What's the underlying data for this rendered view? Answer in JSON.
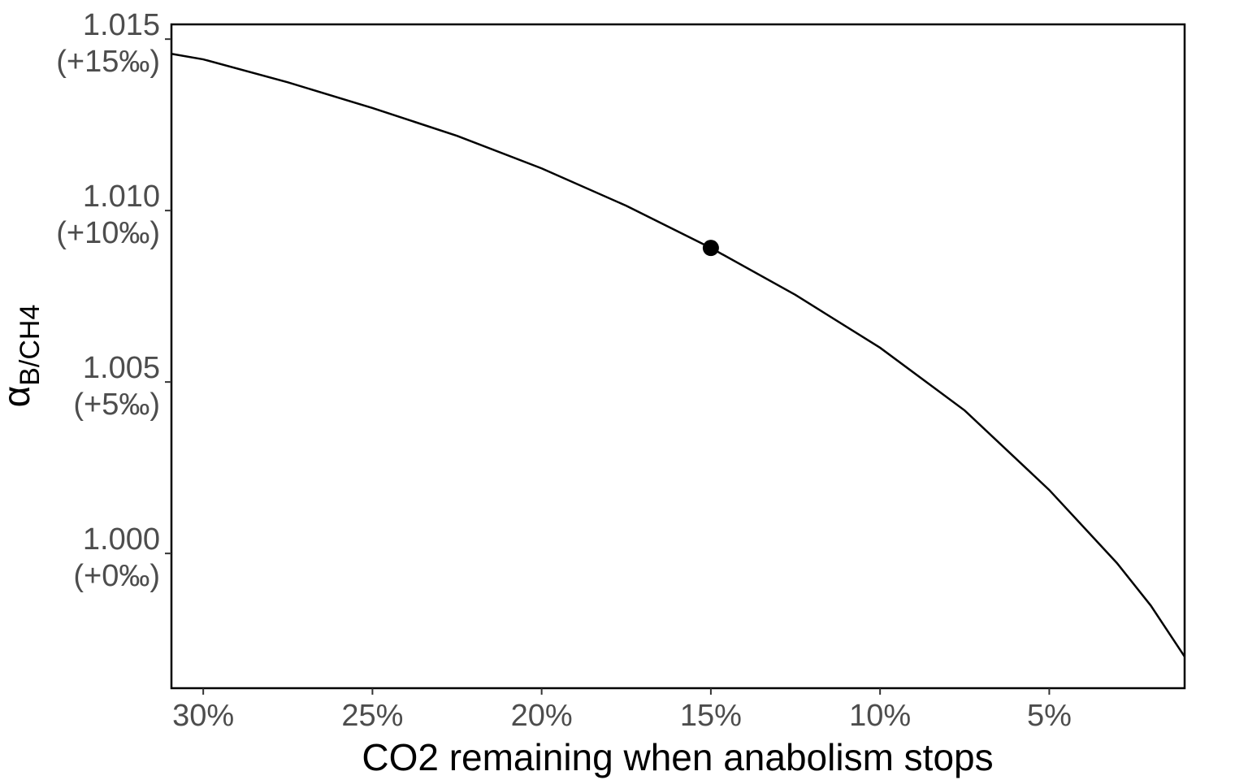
{
  "chart_data": {
    "type": "line",
    "xlabel": "CO2 remaining when anabolism stops",
    "ylabel": "α",
    "ylabel_subscript": "B/CH4",
    "x": [
      30.94,
      30,
      27.5,
      25,
      22.5,
      20,
      17.5,
      15,
      12.5,
      10,
      7.5,
      5,
      3,
      2,
      1
    ],
    "series": [
      {
        "color": "#000000",
        "values": [
          1.01457,
          1.01441,
          1.01374,
          1.01299,
          1.01218,
          1.01123,
          1.01014,
          1.00891,
          1.00754,
          1.006,
          1.00417,
          1.00185,
          0.99972,
          0.99848,
          0.99699
        ]
      }
    ],
    "points": [
      {
        "x": 15,
        "y": 1.00891,
        "color": "#000000"
      }
    ],
    "xlim": [
      30.94,
      1.0
    ],
    "ylim": [
      0.99607,
      1.01543
    ],
    "xticks": [
      {
        "value": 30,
        "label": "30%"
      },
      {
        "value": 25,
        "label": "25%"
      },
      {
        "value": 20,
        "label": "20%"
      },
      {
        "value": 15,
        "label": "15%"
      },
      {
        "value": 10,
        "label": "10%"
      },
      {
        "value": 5,
        "label": "5%"
      }
    ],
    "yticks": [
      {
        "value": 1.015,
        "label": [
          "1.015",
          "(+15‰)"
        ]
      },
      {
        "value": 1.01,
        "label": [
          "1.010",
          "(+10‰)"
        ]
      },
      {
        "value": 1.005,
        "label": [
          "1.005",
          "(+5‰)"
        ]
      },
      {
        "value": 1.0,
        "label": [
          "1.000",
          "(+0‰)"
        ]
      }
    ],
    "grid": false
  }
}
